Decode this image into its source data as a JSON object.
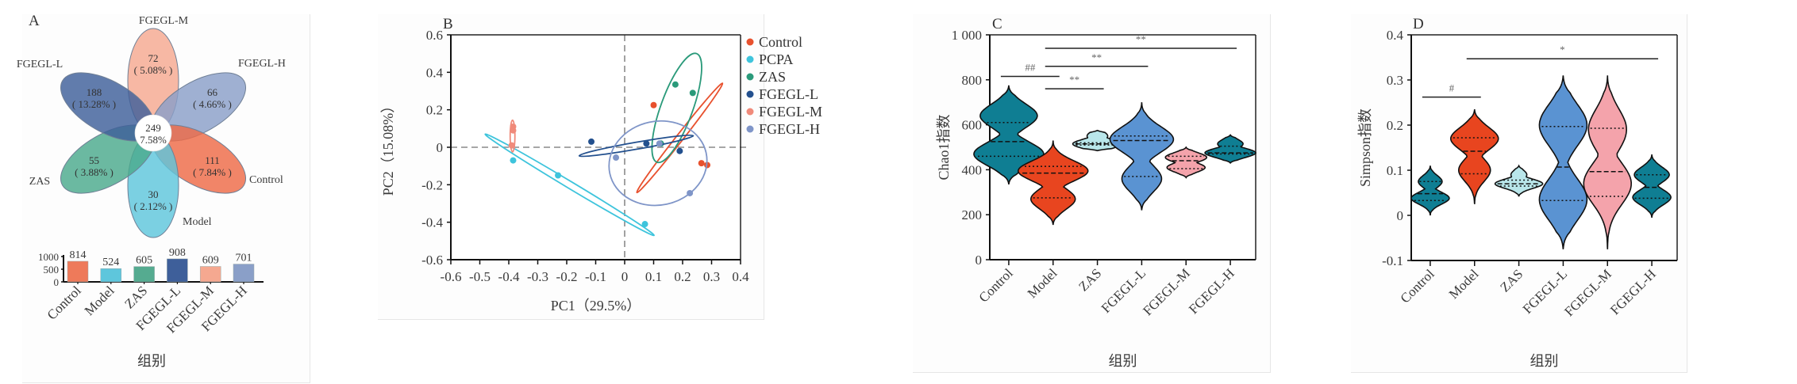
{
  "figure": {
    "panels": [
      "A",
      "B",
      "C",
      "D"
    ],
    "group_axis_title": "组别"
  },
  "chart_data": [
    {
      "panel": "A",
      "type": "venn-flower",
      "title": "",
      "center": {
        "count": "249",
        "percent": "7.58%"
      },
      "petals": [
        {
          "name": "FGEGL-M",
          "count": "72",
          "percent": "5.08%",
          "color": "#f5a890"
        },
        {
          "name": "FGEGL-H",
          "count": "66",
          "percent": "4.66%",
          "color": "#8a9fc8"
        },
        {
          "name": "Control",
          "count": "111",
          "percent": "7.84%",
          "color": "#ee6a47"
        },
        {
          "name": "Model",
          "count": "30",
          "percent": "2.12%",
          "color": "#5ec6dc"
        },
        {
          "name": "ZAS",
          "count": "55",
          "percent": "3.88%",
          "color": "#4aa98c"
        },
        {
          "name": "FGEGL-L",
          "count": "188",
          "percent": "13.28%",
          "color": "#3e5f9a"
        }
      ],
      "bar": {
        "type": "bar",
        "categories": [
          "Control",
          "Model",
          "ZAS",
          "FGEGL-L",
          "FGEGL-M",
          "FGEGL-H"
        ],
        "values": [
          814,
          524,
          605,
          908,
          609,
          701
        ],
        "colors": [
          "#ee7a5a",
          "#5ec6dc",
          "#55ab90",
          "#3e5f9a",
          "#f5a890",
          "#8a9fc8"
        ],
        "ylim": [
          0,
          1000
        ],
        "yticks": [
          "0",
          "500",
          "1000"
        ],
        "xlabel": "组别"
      }
    },
    {
      "panel": "B",
      "type": "scatter",
      "title": "",
      "xlabel": "PC1（29.5%）",
      "ylabel": "PC2（15.08%）",
      "xlim": [
        -0.6,
        0.4
      ],
      "ylim": [
        -0.6,
        0.6
      ],
      "xticks": [
        "-0.6",
        "-0.5",
        "-0.4",
        "-0.3",
        "-0.2",
        "-0.1",
        "0",
        "0.1",
        "0.2",
        "0.3",
        "0.4"
      ],
      "yticks": [
        "-0.6",
        "-0.4",
        "-0.2",
        "0",
        "0.2",
        "0.4",
        "0.6"
      ],
      "legend_position": "right",
      "series": [
        {
          "name": "Control",
          "color": "#e8512e",
          "points": [
            [
              0.1,
              0.225
            ],
            [
              0.265,
              -0.085
            ],
            [
              0.285,
              -0.095
            ]
          ],
          "ellipse": {
            "cx": 0.19,
            "cy": 0.05,
            "rx": 0.24,
            "ry": 0.012,
            "angle": -52
          }
        },
        {
          "name": "PCPA",
          "color": "#3ec4dc",
          "points": [
            [
              -0.385,
              -0.07
            ],
            [
              -0.23,
              -0.15
            ],
            [
              0.07,
              -0.41
            ]
          ],
          "ellipse": {
            "cx": -0.19,
            "cy": -0.2,
            "rx": 0.34,
            "ry": 0.012,
            "angle": 31
          }
        },
        {
          "name": "ZAS",
          "color": "#2a9a7a",
          "points": [
            [
              0.175,
              0.335
            ],
            [
              0.235,
              0.29
            ],
            [
              0.125,
              0.02
            ]
          ],
          "ellipse": {
            "cx": 0.18,
            "cy": 0.21,
            "rx": 0.2,
            "ry": 0.055,
            "angle": -70
          }
        },
        {
          "name": "FGEGL-L",
          "color": "#23508e",
          "points": [
            [
              -0.115,
              0.03
            ],
            [
              0.075,
              0.02
            ],
            [
              0.19,
              -0.02
            ]
          ],
          "ellipse": {
            "cx": 0.04,
            "cy": 0.008,
            "rx": 0.2,
            "ry": 0.012,
            "angle": -10
          }
        },
        {
          "name": "FGEGL-M",
          "color": "#f08a7a",
          "points": [
            [
              -0.385,
              0.11
            ],
            [
              -0.385,
              0.09
            ],
            [
              -0.39,
              0.01
            ]
          ],
          "ellipse": {
            "cx": -0.387,
            "cy": 0.06,
            "rx": 0.055,
            "ry": 0.006,
            "angle": -90
          }
        },
        {
          "name": "FGEGL-H",
          "color": "#7f95c8",
          "points": [
            [
              -0.03,
              -0.055
            ],
            [
              0.225,
              -0.245
            ],
            [
              0.12,
              0.02
            ]
          ],
          "ellipse": {
            "cx": 0.115,
            "cy": -0.085,
            "rx": 0.17,
            "ry": 0.145,
            "angle": -12
          }
        }
      ]
    },
    {
      "panel": "C",
      "type": "violin",
      "title": "",
      "xlabel": "组别",
      "ylabel": "Chao1指数",
      "ylim": [
        0,
        1000
      ],
      "yticks": [
        "0",
        "200",
        "400",
        "600",
        "800",
        "1 000"
      ],
      "categories": [
        "Control",
        "Model",
        "ZAS",
        "FGEGL-L",
        "FGEGL-M",
        "FGEGL-H"
      ],
      "colors": [
        "#0f7e93",
        "#e8451f",
        "#b9e6ea",
        "#5a93d2",
        "#f4a3ab",
        "#0f7e93"
      ],
      "groups": [
        {
          "min": 335,
          "max": 775,
          "q1": 460,
          "median": 525,
          "q3": 610,
          "bulges": [
            [
              640,
              36
            ],
            [
              470,
              44
            ]
          ]
        },
        {
          "min": 155,
          "max": 530,
          "q1": 275,
          "median": 385,
          "q3": 415,
          "bulges": [
            [
              395,
              44
            ],
            [
              270,
              28
            ]
          ]
        },
        {
          "min": 485,
          "max": 575,
          "q1": 510,
          "median": 515,
          "q3": 520,
          "bulges": [
            [
              550,
              13
            ],
            [
              515,
              31
            ]
          ]
        },
        {
          "min": 220,
          "max": 700,
          "q1": 370,
          "median": 530,
          "q3": 550,
          "bulges": [
            [
              535,
              40
            ],
            [
              360,
              25
            ]
          ]
        },
        {
          "min": 365,
          "max": 500,
          "q1": 405,
          "median": 440,
          "q3": 460,
          "bulges": [
            [
              455,
              26
            ],
            [
              410,
              24
            ]
          ]
        },
        {
          "min": 430,
          "max": 555,
          "q1": 470,
          "median": 475,
          "q3": 505,
          "bulges": [
            [
              515,
              16
            ],
            [
              475,
              32
            ]
          ]
        }
      ],
      "significance": [
        {
          "from": 0,
          "to": 1,
          "y": 815,
          "label": "##"
        },
        {
          "from": 1,
          "to": 2,
          "y": 760,
          "label": "**"
        },
        {
          "from": 1,
          "to": 3,
          "y": 860,
          "label": "**"
        },
        {
          "from": 1,
          "to": 5,
          "y": 940,
          "label": "**"
        }
      ]
    },
    {
      "panel": "D",
      "type": "violin",
      "title": "",
      "xlabel": "组别",
      "ylabel": "Simpson指数",
      "ylim": [
        -0.1,
        0.4
      ],
      "yticks": [
        "-0.1",
        "0",
        "0.1",
        "0.2",
        "0.3",
        "0.4"
      ],
      "categories": [
        "Control",
        "Model",
        "ZAS",
        "FGEGL-L",
        "FGEGL-M",
        "FGEGL-H"
      ],
      "colors": [
        "#0f7e93",
        "#e8451f",
        "#b9e6ea",
        "#5a93d2",
        "#f4a3ab",
        "#0f7e93"
      ],
      "groups": [
        {
          "min": 0.0,
          "max": 0.11,
          "q1": 0.033,
          "median": 0.048,
          "q3": 0.075,
          "bulges": [
            [
              0.075,
              15
            ],
            [
              0.038,
              24
            ]
          ]
        },
        {
          "min": 0.025,
          "max": 0.235,
          "q1": 0.092,
          "median": 0.142,
          "q3": 0.172,
          "bulges": [
            [
              0.17,
              30
            ],
            [
              0.1,
              20
            ]
          ]
        },
        {
          "min": 0.042,
          "max": 0.11,
          "q1": 0.065,
          "median": 0.07,
          "q3": 0.078,
          "bulges": [
            [
              0.09,
              10
            ],
            [
              0.07,
              30
            ]
          ]
        },
        {
          "min": -0.075,
          "max": 0.31,
          "q1": 0.033,
          "median": 0.107,
          "q3": 0.197,
          "bulges": [
            [
              0.2,
              30
            ],
            [
              0.035,
              30
            ]
          ]
        },
        {
          "min": -0.075,
          "max": 0.31,
          "q1": 0.042,
          "median": 0.097,
          "q3": 0.193,
          "bulges": [
            [
              0.19,
              24
            ],
            [
              0.07,
              30
            ]
          ]
        },
        {
          "min": -0.005,
          "max": 0.135,
          "q1": 0.038,
          "median": 0.062,
          "q3": 0.09,
          "bulges": [
            [
              0.09,
              22
            ],
            [
              0.04,
              24
            ]
          ]
        }
      ],
      "significance": [
        {
          "from": 0,
          "to": 1,
          "y": 0.262,
          "label": "#"
        },
        {
          "from": 1,
          "to": 5,
          "y": 0.347,
          "label": "*"
        }
      ]
    }
  ]
}
